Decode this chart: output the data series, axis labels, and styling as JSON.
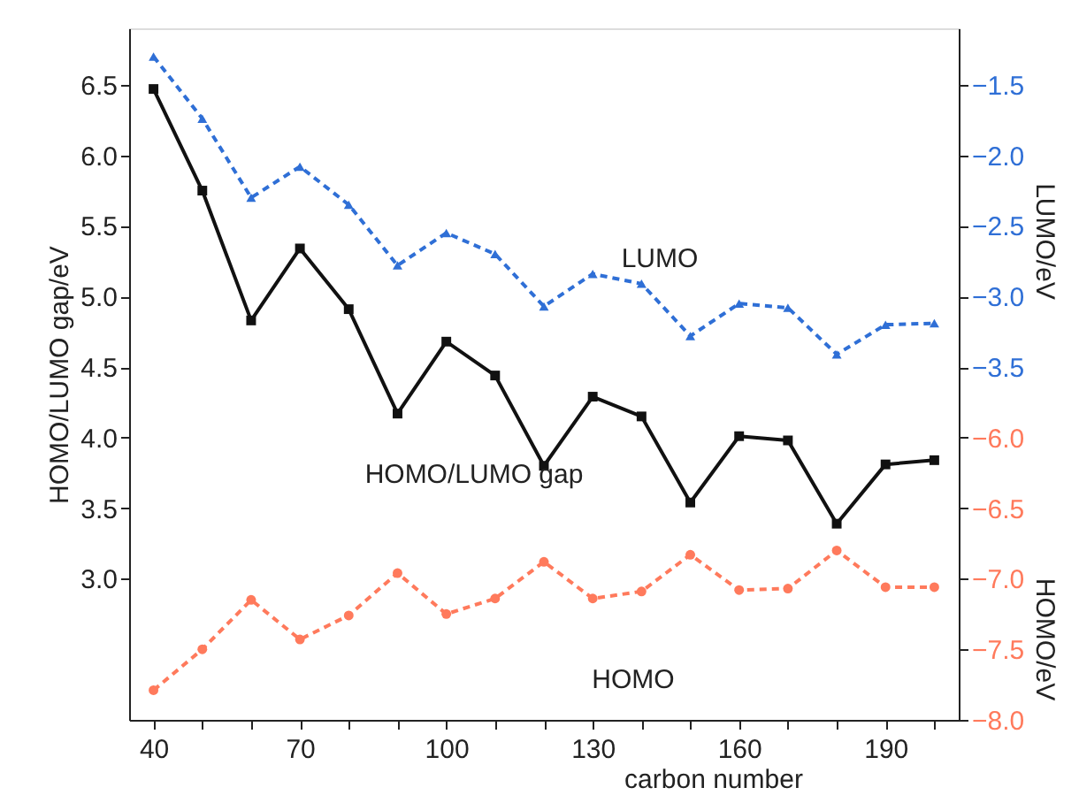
{
  "chart_data": {
    "type": "line",
    "xlabel": "carbon number",
    "ylabel": "HOMO/LUMO gap/eV",
    "y2label": "LUMO/eV",
    "y3label": "HOMO/eV",
    "x": [
      40,
      50,
      60,
      70,
      80,
      90,
      100,
      110,
      120,
      130,
      140,
      150,
      160,
      170,
      180,
      190,
      200
    ],
    "series": [
      {
        "name": "LUMO",
        "axis": "y2",
        "color": "#2f6fd6",
        "marker": "triangle",
        "line_style": "dashed",
        "values": [
          -1.3,
          -1.74,
          -2.3,
          -2.08,
          -2.35,
          -2.78,
          -2.55,
          -2.7,
          -3.07,
          -2.84,
          -2.91,
          -3.28,
          -3.05,
          -3.08,
          -3.41,
          -3.2,
          -3.19
        ]
      },
      {
        "name": "HOMO/LUMO gap",
        "axis": "y",
        "color": "#111111",
        "marker": "square",
        "line_style": "solid",
        "values": [
          6.47,
          5.75,
          4.83,
          5.34,
          4.91,
          4.17,
          4.68,
          4.44,
          3.8,
          4.29,
          4.15,
          3.54,
          4.01,
          3.98,
          3.39,
          3.81,
          3.84
        ]
      },
      {
        "name": "HOMO",
        "axis": "y3",
        "color": "#ff7a5c",
        "marker": "circle",
        "line_style": "dashed",
        "values": [
          -7.79,
          -7.5,
          -7.15,
          -7.43,
          -7.26,
          -6.96,
          -7.25,
          -7.14,
          -6.88,
          -7.14,
          -7.09,
          -6.83,
          -7.08,
          -7.07,
          -6.8,
          -7.06,
          -7.06
        ]
      }
    ],
    "xlim": [
      35,
      205
    ],
    "xticks": [
      40,
      {
        "value": 50,
        "label": null
      },
      {
        "value": 60,
        "label": null
      },
      70,
      {
        "value": 80,
        "label": null
      },
      {
        "value": 90,
        "label": null
      },
      100,
      {
        "value": 110,
        "label": null
      },
      {
        "value": 120,
        "label": null
      },
      130,
      {
        "value": 140,
        "label": null
      },
      {
        "value": 150,
        "label": null
      },
      160,
      {
        "value": 170,
        "label": null
      },
      {
        "value": 180,
        "label": null
      },
      190,
      {
        "value": 200,
        "label": null
      }
    ],
    "ylim": [
      2.0,
      6.9
    ],
    "yticks": [
      {
        "value": 3,
        "label": "3.0"
      },
      3.5,
      {
        "value": 4,
        "label": "4.0"
      },
      4.5,
      {
        "value": 5,
        "label": "5.0"
      },
      5.5,
      {
        "value": 6,
        "label": "6.0"
      },
      6.5
    ],
    "y2lim": [
      -6.0,
      -1.1
    ],
    "y2ticks": [
      -1.5,
      {
        "value": -2,
        "label": "−2.0"
      },
      -2.5,
      {
        "value": -3,
        "label": "−3.0"
      },
      -3.5
    ],
    "y3lim": [
      -8.0,
      -3.1
    ],
    "y3ticks": [
      {
        "value": -6,
        "label": "−6.0"
      },
      -6.5,
      {
        "value": -7,
        "label": "−7.0"
      },
      -7.5,
      {
        "value": -8,
        "label": "−8.0"
      }
    ]
  }
}
